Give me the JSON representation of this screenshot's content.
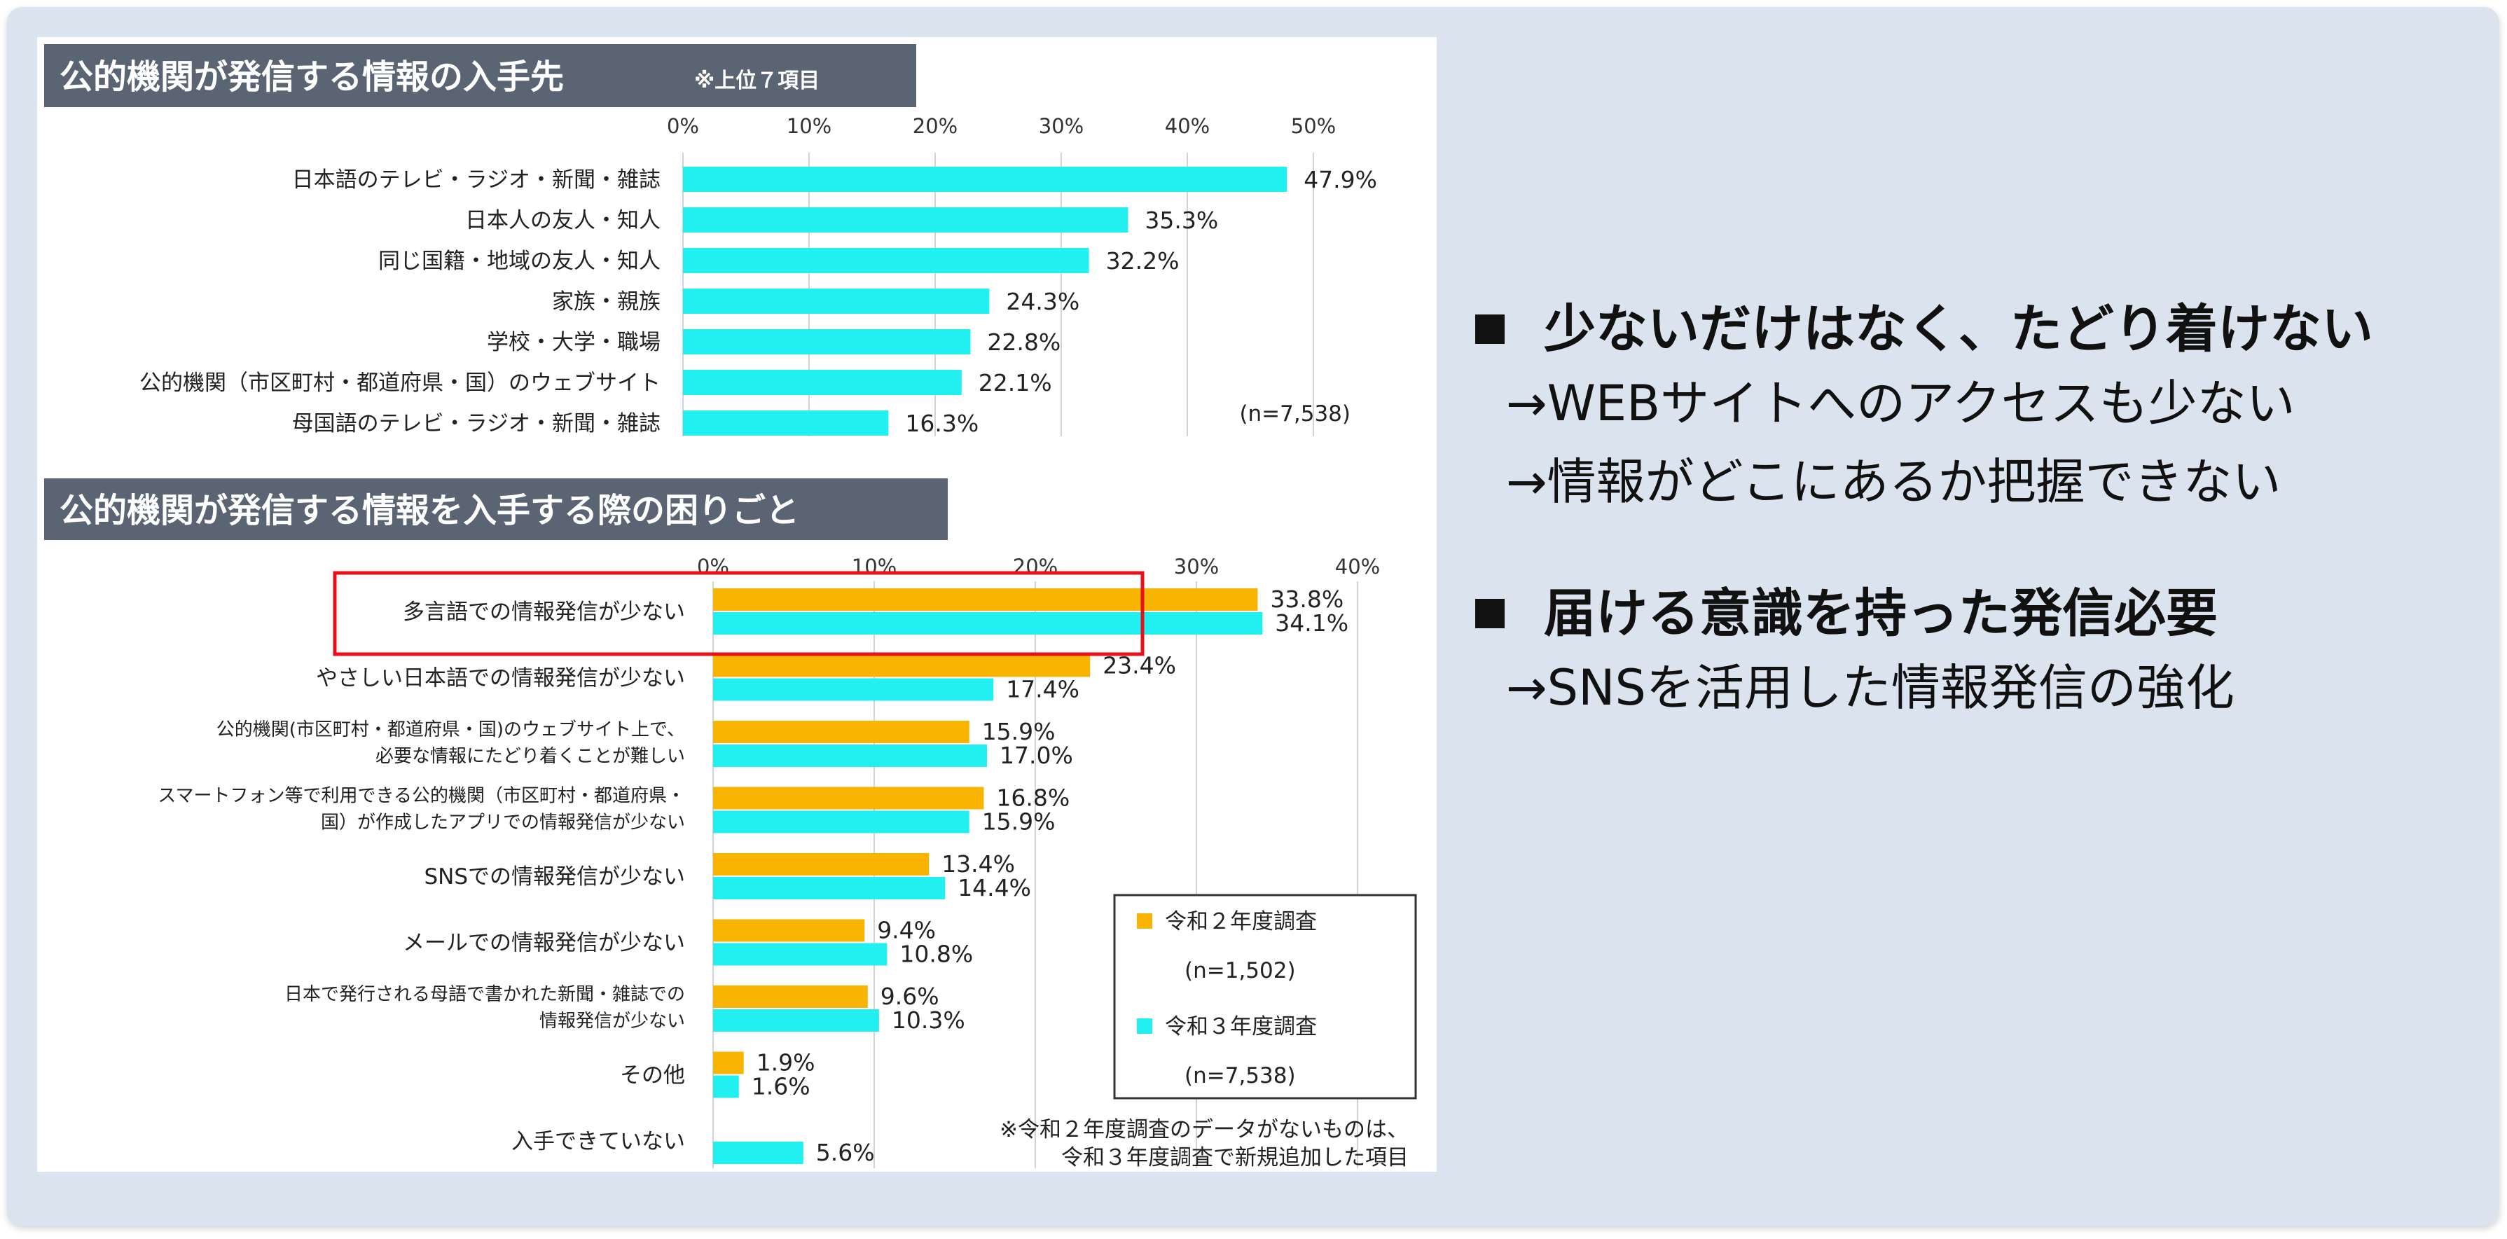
{
  "chart_data": [
    {
      "type": "bar",
      "orientation": "horizontal",
      "title": "公的機関が発信する情報の入手先",
      "title_note": "※上位７項目",
      "categories": [
        "日本語のテレビ・ラジオ・新聞・雑誌",
        "日本人の友人・知人",
        "同じ国籍・地域の友人・知人",
        "家族・親族",
        "学校・大学・職場",
        "公的機関（市区町村・都道府県・国）のウェブサイト",
        "母国語のテレビ・ラジオ・新聞・雑誌"
      ],
      "series": [
        {
          "values": [
            47.9,
            35.3,
            32.2,
            24.3,
            22.8,
            22.1,
            16.3
          ],
          "labels": [
            "47.9%",
            "35.3%",
            "32.2%",
            "24.3%",
            "22.8%",
            "22.1%",
            "16.3%"
          ],
          "color": "#22f0f0"
        }
      ],
      "xlim": [
        0,
        50
      ],
      "ticks": [
        "0%",
        "10%",
        "20%",
        "30%",
        "40%",
        "50%"
      ],
      "sample_note": "(n=7,538)",
      "grid": true
    },
    {
      "type": "bar",
      "orientation": "horizontal",
      "title": "公的機関が発信する情報を入手する際の困りごと",
      "categories": [
        [
          "多言語での情報発信が少ない"
        ],
        [
          "やさしい日本語での情報発信が少ない"
        ],
        [
          "公的機関(市区町村・都道府県・国)のウェブサイト上で、",
          "必要な情報にたどり着くことが難しい"
        ],
        [
          "スマートフォン等で利用できる公的機関（市区町村・都道府県・",
          "国）が作成したアプリでの情報発信が少ない"
        ],
        [
          "SNSでの情報発信が少ない"
        ],
        [
          "メールでの情報発信が少ない"
        ],
        [
          "日本で発行される母語で書かれた新聞・雑誌での",
          "情報発信が少ない"
        ],
        [
          "その他"
        ],
        [
          "入手できていない"
        ]
      ],
      "series": [
        {
          "name": "令和２年度調査",
          "sample": "(n=1,502)",
          "color": "#f8b400",
          "values": [
            33.8,
            23.4,
            15.9,
            16.8,
            13.4,
            9.4,
            9.6,
            1.9,
            null
          ],
          "labels": [
            "33.8%",
            "23.4%",
            "15.9%",
            "16.8%",
            "13.4%",
            "9.4%",
            "9.6%",
            "1.9%",
            ""
          ]
        },
        {
          "name": "令和３年度調査",
          "sample": "(n=7,538)",
          "color": "#22f0f0",
          "values": [
            34.1,
            17.4,
            17.0,
            15.9,
            14.4,
            10.8,
            10.3,
            1.6,
            5.6
          ],
          "labels": [
            "34.1%",
            "17.4%",
            "17.0%",
            "15.9%",
            "14.4%",
            "10.8%",
            "10.3%",
            "1.6%",
            "5.6%"
          ]
        }
      ],
      "xlim": [
        0,
        40
      ],
      "ticks": [
        "0%",
        "10%",
        "20%",
        "30%",
        "40%"
      ],
      "highlight_category": "多言語での情報発信が少ない",
      "highlight_color": "#e8101a",
      "legend_position": "bottom-right",
      "footnote": [
        "※令和２年度調査のデータがないものは、",
        "令和３年度調査で新規追加した項目"
      ],
      "grid": true
    }
  ],
  "bullets": [
    {
      "heading": "少ないだけはなく、たどり着けない",
      "subs": [
        "→WEBサイトへのアクセスも少ない",
        "→情報がどこにあるか把握できない"
      ]
    },
    {
      "heading": "届ける意識を持った発信必要",
      "subs": [
        "→SNSを活用した情報発信の強化"
      ]
    }
  ]
}
